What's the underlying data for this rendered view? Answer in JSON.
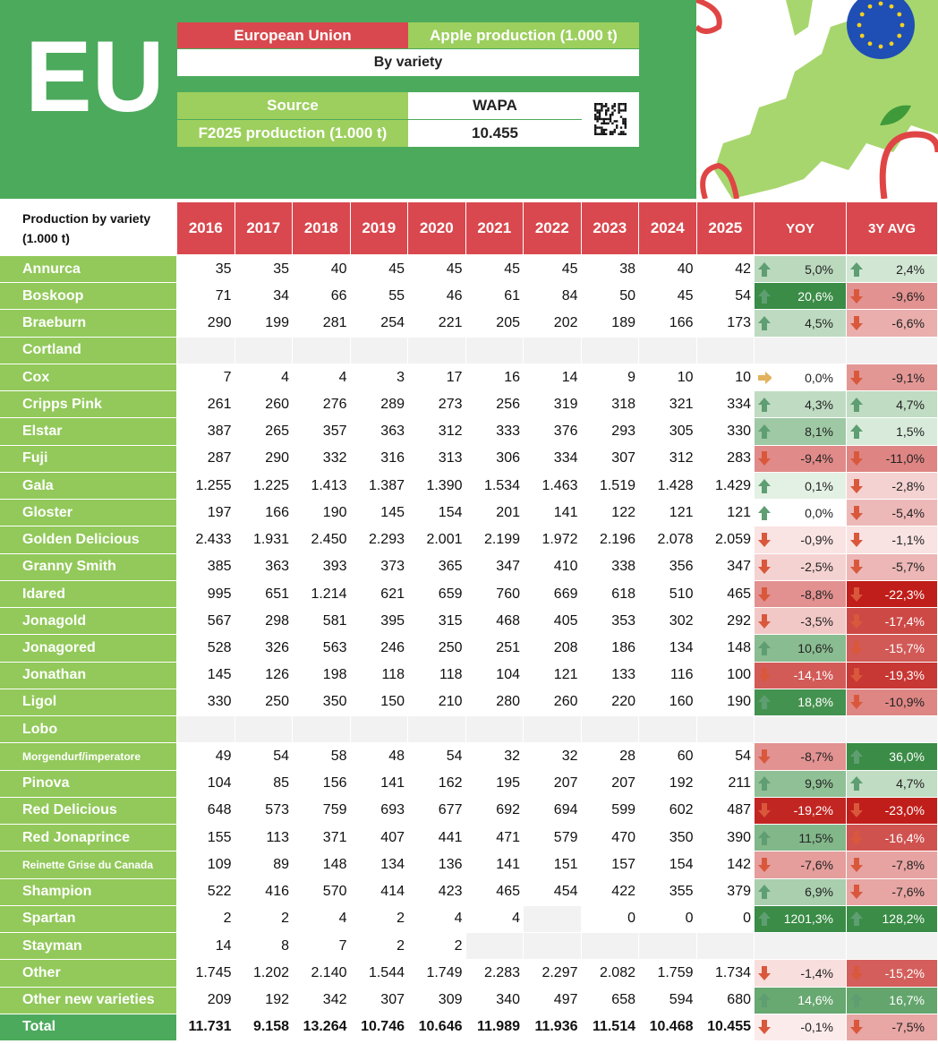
{
  "logo": "EU",
  "info": {
    "region": "European Union",
    "product": "Apple production (1.000 t)",
    "subtitle": "By variety",
    "source_label": "Source",
    "source": "WAPA",
    "production_label": "F2025 production (1.000 t)",
    "production": "10.455"
  },
  "table": {
    "header": [
      "Production by variety (1.000 t)",
      "2016",
      "2017",
      "2018",
      "2019",
      "2020",
      "2021",
      "2022",
      "2023",
      "2024",
      "2025",
      "YOY",
      "3Y AVG"
    ],
    "rows": [
      {
        "name": "Annurca",
        "values": [
          "35",
          "35",
          "40",
          "45",
          "45",
          "45",
          "45",
          "38",
          "40",
          "42"
        ],
        "yoy": "5,0%",
        "avg": "2,4%"
      },
      {
        "name": "Boskoop",
        "values": [
          "71",
          "34",
          "66",
          "55",
          "46",
          "61",
          "84",
          "50",
          "45",
          "54"
        ],
        "yoy": "20,6%",
        "avg": "-9,6%"
      },
      {
        "name": "Braeburn",
        "values": [
          "290",
          "199",
          "281",
          "254",
          "221",
          "205",
          "202",
          "189",
          "166",
          "173"
        ],
        "yoy": "4,5%",
        "avg": "-6,6%"
      },
      {
        "name": "Cortland",
        "values": [
          null,
          null,
          null,
          null,
          null,
          null,
          null,
          null,
          null,
          null
        ],
        "yoy": null,
        "avg": null
      },
      {
        "name": "Cox",
        "values": [
          "7",
          "4",
          "4",
          "3",
          "17",
          "16",
          "14",
          "9",
          "10",
          "10"
        ],
        "yoy": "0,0%",
        "avg": "-9,1%"
      },
      {
        "name": "Cripps Pink",
        "values": [
          "261",
          "260",
          "276",
          "289",
          "273",
          "256",
          "319",
          "318",
          "321",
          "334"
        ],
        "yoy": "4,3%",
        "avg": "4,7%"
      },
      {
        "name": "Elstar",
        "values": [
          "387",
          "265",
          "357",
          "363",
          "312",
          "333",
          "376",
          "293",
          "305",
          "330"
        ],
        "yoy": "8,1%",
        "avg": "1,5%"
      },
      {
        "name": "Fuji",
        "values": [
          "287",
          "290",
          "332",
          "316",
          "313",
          "306",
          "334",
          "307",
          "312",
          "283"
        ],
        "yoy": "-9,4%",
        "avg": "-11,0%"
      },
      {
        "name": "Gala",
        "values": [
          "1.255",
          "1.225",
          "1.413",
          "1.387",
          "1.390",
          "1.534",
          "1.463",
          "1.519",
          "1.428",
          "1.429"
        ],
        "yoy": "0,1%",
        "avg": "-2,8%"
      },
      {
        "name": "Gloster",
        "values": [
          "197",
          "166",
          "190",
          "145",
          "154",
          "201",
          "141",
          "122",
          "121",
          "121"
        ],
        "yoy": "0,0%",
        "avg": "-5,4%"
      },
      {
        "name": "Golden Delicious",
        "values": [
          "2.433",
          "1.931",
          "2.450",
          "2.293",
          "2.001",
          "2.199",
          "1.972",
          "2.196",
          "2.078",
          "2.059"
        ],
        "yoy": "-0,9%",
        "avg": "-1,1%"
      },
      {
        "name": "Granny Smith",
        "values": [
          "385",
          "363",
          "393",
          "373",
          "365",
          "347",
          "410",
          "338",
          "356",
          "347"
        ],
        "yoy": "-2,5%",
        "avg": "-5,7%"
      },
      {
        "name": "Idared",
        "values": [
          "995",
          "651",
          "1.214",
          "621",
          "659",
          "760",
          "669",
          "618",
          "510",
          "465"
        ],
        "yoy": "-8,8%",
        "avg": "-22,3%"
      },
      {
        "name": "Jonagold",
        "values": [
          "567",
          "298",
          "581",
          "395",
          "315",
          "468",
          "405",
          "353",
          "302",
          "292"
        ],
        "yoy": "-3,5%",
        "avg": "-17,4%"
      },
      {
        "name": "Jonagored",
        "values": [
          "528",
          "326",
          "563",
          "246",
          "250",
          "251",
          "208",
          "186",
          "134",
          "148"
        ],
        "yoy": "10,6%",
        "avg": "-15,7%"
      },
      {
        "name": "Jonathan",
        "values": [
          "145",
          "126",
          "198",
          "118",
          "118",
          "104",
          "121",
          "133",
          "116",
          "100"
        ],
        "yoy": "-14,1%",
        "avg": "-19,3%"
      },
      {
        "name": "Ligol",
        "values": [
          "330",
          "250",
          "350",
          "150",
          "210",
          "280",
          "260",
          "220",
          "160",
          "190"
        ],
        "yoy": "18,8%",
        "avg": "-10,9%"
      },
      {
        "name": "Lobo",
        "values": [
          null,
          null,
          null,
          null,
          null,
          null,
          null,
          null,
          null,
          null
        ],
        "yoy": null,
        "avg": null
      },
      {
        "name": "Morgendurf/imperatore",
        "values": [
          "49",
          "54",
          "58",
          "48",
          "54",
          "32",
          "32",
          "28",
          "60",
          "54"
        ],
        "yoy": "-8,7%",
        "avg": "36,0%"
      },
      {
        "name": "Pinova",
        "values": [
          "104",
          "85",
          "156",
          "141",
          "162",
          "195",
          "207",
          "207",
          "192",
          "211"
        ],
        "yoy": "9,9%",
        "avg": "4,7%"
      },
      {
        "name": "Red Delicious",
        "values": [
          "648",
          "573",
          "759",
          "693",
          "677",
          "692",
          "694",
          "599",
          "602",
          "487"
        ],
        "yoy": "-19,2%",
        "avg": "-23,0%"
      },
      {
        "name": "Red Jonaprince",
        "values": [
          "155",
          "113",
          "371",
          "407",
          "441",
          "471",
          "579",
          "470",
          "350",
          "390"
        ],
        "yoy": "11,5%",
        "avg": "-16,4%"
      },
      {
        "name": "Reinette Grise du Canada",
        "values": [
          "109",
          "89",
          "148",
          "134",
          "136",
          "141",
          "151",
          "157",
          "154",
          "142"
        ],
        "yoy": "-7,6%",
        "avg": "-7,8%"
      },
      {
        "name": "Shampion",
        "values": [
          "522",
          "416",
          "570",
          "414",
          "423",
          "465",
          "454",
          "422",
          "355",
          "379"
        ],
        "yoy": "6,9%",
        "avg": "-7,6%"
      },
      {
        "name": "Spartan",
        "values": [
          "2",
          "2",
          "4",
          "2",
          "4",
          "4",
          null,
          "0",
          "0",
          "0"
        ],
        "yoy": "1201,3%",
        "avg": "128,2%"
      },
      {
        "name": "Stayman",
        "values": [
          "14",
          "8",
          "7",
          "2",
          "2",
          null,
          null,
          null,
          null,
          null
        ],
        "yoy": null,
        "avg": null
      },
      {
        "name": "Other",
        "values": [
          "1.745",
          "1.202",
          "2.140",
          "1.544",
          "1.749",
          "2.283",
          "2.297",
          "2.082",
          "1.759",
          "1.734"
        ],
        "yoy": "-1,4%",
        "avg": "-15,2%"
      },
      {
        "name": "Other new varieties",
        "values": [
          "209",
          "192",
          "342",
          "307",
          "309",
          "340",
          "497",
          "658",
          "594",
          "680"
        ],
        "yoy": "14,6%",
        "avg": "16,7%"
      },
      {
        "name": "Total",
        "values": [
          "11.731",
          "9.158",
          "13.264",
          "10.746",
          "10.646",
          "11.989",
          "11.936",
          "11.514",
          "10.468",
          "10.455"
        ],
        "yoy": "-0,1%",
        "avg": "-7,5%"
      }
    ]
  }
}
